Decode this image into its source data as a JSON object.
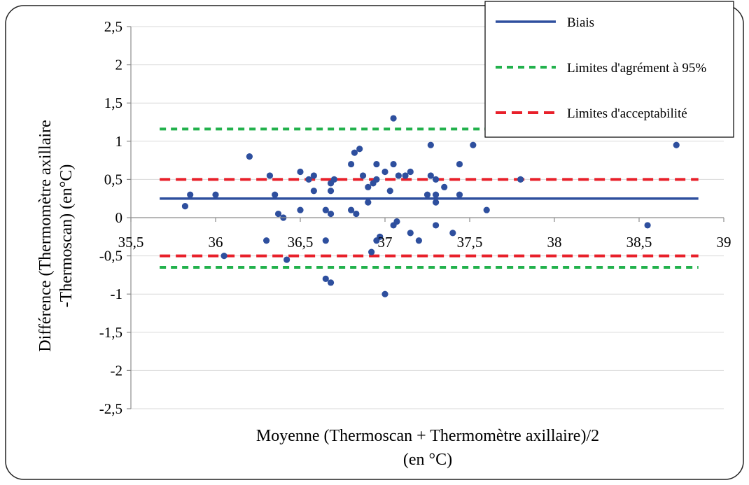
{
  "chart_data": {
    "type": "scatter",
    "title": "",
    "xlabel": "Moyenne (Thermoscan + Thermomètre axillaire)/2",
    "xlabel_unit": "(en °C)",
    "ylabel": "Différence (Thermomètre axillaire",
    "ylabel_line2": "-Thermoscan) (en°C)",
    "xlim": [
      35.5,
      39
    ],
    "ylim": [
      -2.5,
      2.5
    ],
    "x_tick_values": [
      35.5,
      36,
      36.5,
      37,
      37.5,
      38,
      38.5,
      39
    ],
    "x_tick_labels": [
      "35,5",
      "36",
      "36,5",
      "37",
      "37,5",
      "38",
      "38,5",
      "39"
    ],
    "y_tick_values": [
      2.5,
      2,
      1.5,
      1,
      0.5,
      0,
      -0.5,
      -1,
      -1.5,
      -2,
      -2.5
    ],
    "y_tick_labels": [
      "2,5",
      "2",
      "1,5",
      "1",
      "0,5",
      "0",
      "-0,5",
      "-1",
      "-1,5",
      "-2",
      "-2,5"
    ],
    "grid": "horizontal",
    "legend_position": "top-right",
    "series": [
      {
        "kind": "points",
        "color": "#2e4f9e",
        "points": [
          [
            35.82,
            0.15
          ],
          [
            35.85,
            0.3
          ],
          [
            36.0,
            0.3
          ],
          [
            36.05,
            -0.5
          ],
          [
            36.2,
            0.8
          ],
          [
            36.3,
            -0.3
          ],
          [
            36.32,
            0.55
          ],
          [
            36.35,
            0.3
          ],
          [
            36.37,
            0.05
          ],
          [
            36.4,
            0.0
          ],
          [
            36.42,
            -0.55
          ],
          [
            36.5,
            0.1
          ],
          [
            36.5,
            0.6
          ],
          [
            36.55,
            0.5
          ],
          [
            36.58,
            0.55
          ],
          [
            36.58,
            0.35
          ],
          [
            36.65,
            0.1
          ],
          [
            36.65,
            -0.3
          ],
          [
            36.65,
            -0.8
          ],
          [
            36.68,
            -0.85
          ],
          [
            36.68,
            0.35
          ],
          [
            36.68,
            0.05
          ],
          [
            36.68,
            0.45
          ],
          [
            36.7,
            0.5
          ],
          [
            36.8,
            0.7
          ],
          [
            36.8,
            0.1
          ],
          [
            36.82,
            0.85
          ],
          [
            36.83,
            0.05
          ],
          [
            36.85,
            0.9
          ],
          [
            36.87,
            0.55
          ],
          [
            36.9,
            0.4
          ],
          [
            36.9,
            0.2
          ],
          [
            36.92,
            -0.45
          ],
          [
            36.93,
            0.45
          ],
          [
            36.95,
            0.5
          ],
          [
            36.95,
            0.7
          ],
          [
            36.95,
            -0.3
          ],
          [
            36.97,
            -0.25
          ],
          [
            37.0,
            0.6
          ],
          [
            37.0,
            -1.0
          ],
          [
            37.03,
            0.35
          ],
          [
            37.05,
            0.7
          ],
          [
            37.05,
            1.3
          ],
          [
            37.05,
            -0.1
          ],
          [
            37.07,
            -0.05
          ],
          [
            37.08,
            0.55
          ],
          [
            37.12,
            0.55
          ],
          [
            37.15,
            0.6
          ],
          [
            37.15,
            -0.2
          ],
          [
            37.2,
            -0.3
          ],
          [
            37.25,
            0.3
          ],
          [
            37.27,
            0.55
          ],
          [
            37.27,
            0.95
          ],
          [
            37.3,
            0.5
          ],
          [
            37.3,
            0.3
          ],
          [
            37.3,
            0.2
          ],
          [
            37.3,
            -0.1
          ],
          [
            37.35,
            0.4
          ],
          [
            37.4,
            -0.2
          ],
          [
            37.44,
            0.7
          ],
          [
            37.44,
            0.3
          ],
          [
            37.52,
            0.95
          ],
          [
            37.6,
            0.1
          ],
          [
            37.8,
            0.5
          ],
          [
            38.55,
            -0.1
          ],
          [
            38.72,
            0.95
          ]
        ]
      },
      {
        "name": "Biais",
        "kind": "hline",
        "y": 0.25,
        "x_range": [
          35.67,
          38.85
        ],
        "color": "#2e4f9e",
        "style": "solid"
      },
      {
        "name": "Limites d'agrément à 95%",
        "kind": "hline",
        "y_values": [
          1.16,
          -0.65
        ],
        "x_range": [
          35.67,
          38.85
        ],
        "color": "#22b14c",
        "style": "dashed"
      },
      {
        "name": "Limites d'acceptabilité",
        "kind": "hline",
        "y_values": [
          0.5,
          -0.5
        ],
        "x_range": [
          35.67,
          38.85
        ],
        "color": "#e8202a",
        "style": "dashed"
      }
    ]
  }
}
